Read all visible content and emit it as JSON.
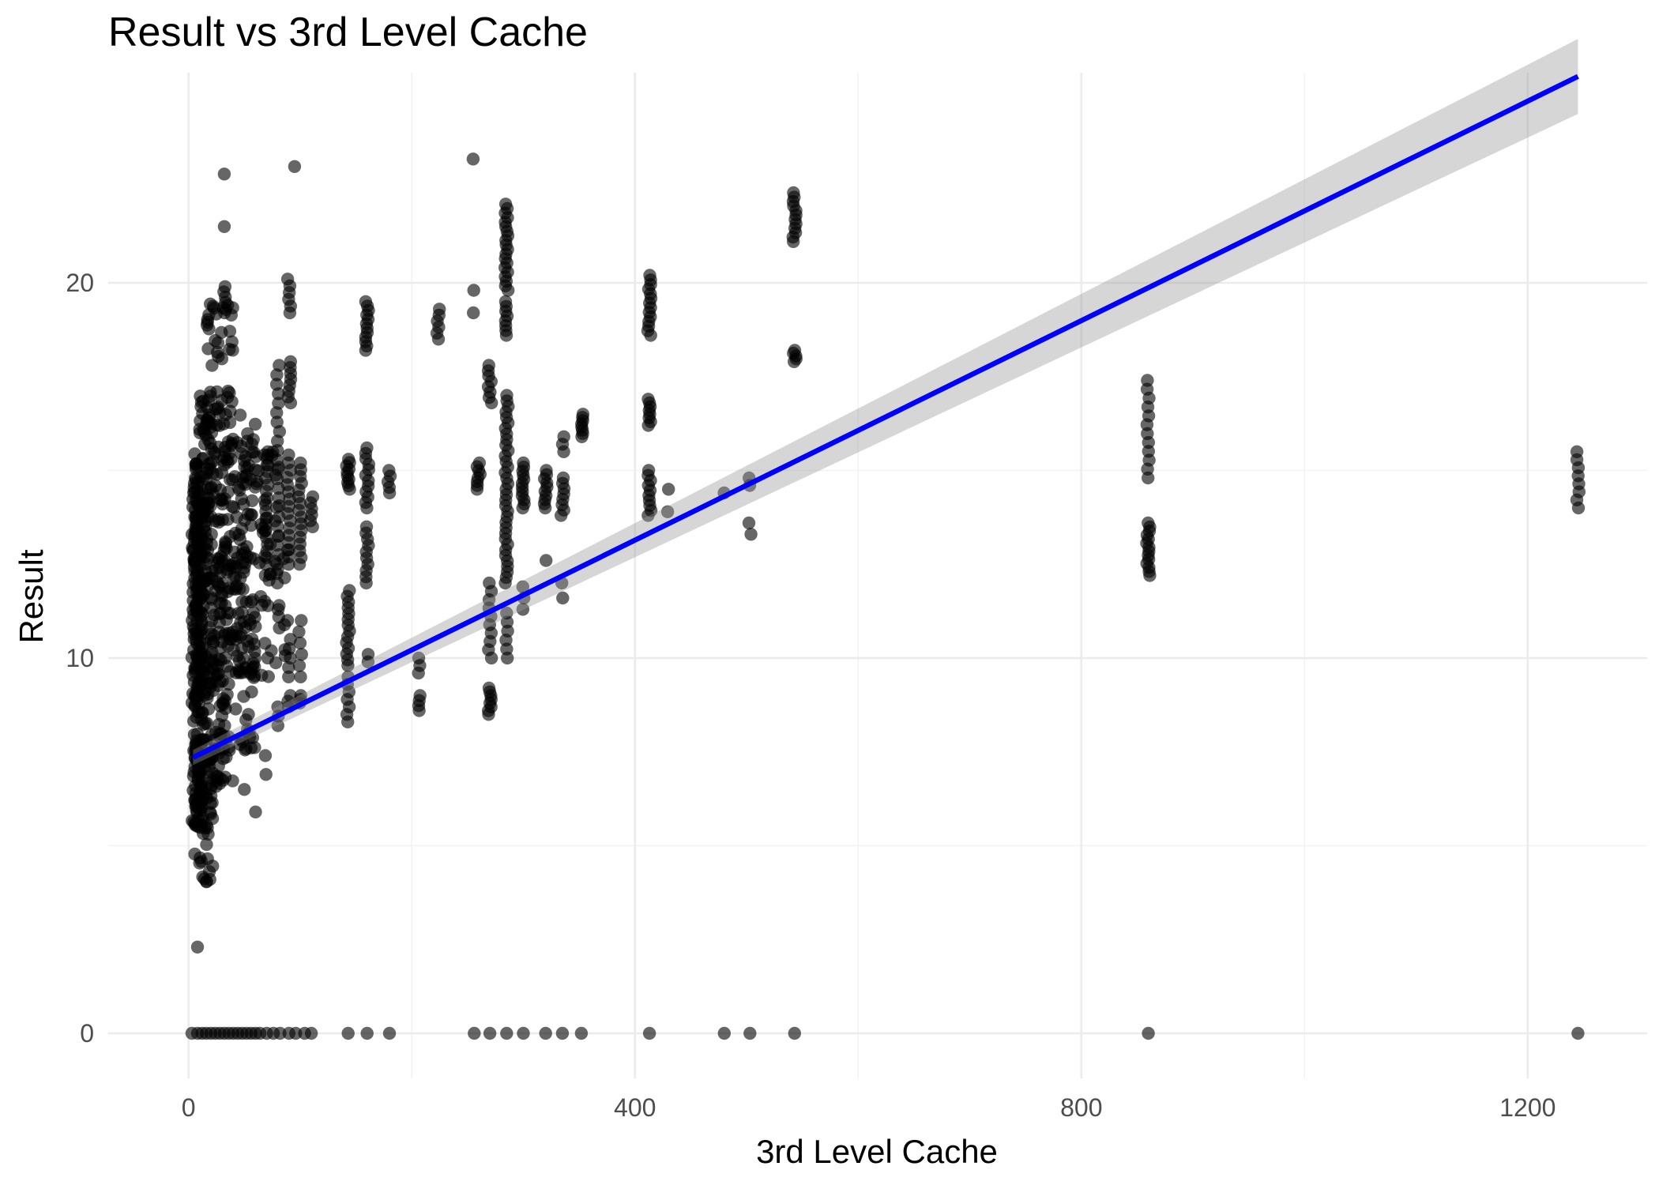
{
  "chart_data": {
    "type": "scatter",
    "title": "Result vs 3rd Level Cache",
    "xlabel": "3rd Level Cache",
    "ylabel": "Result",
    "xlim": [
      -72,
      1307
    ],
    "ylim": [
      -1.2,
      25.6
    ],
    "x_ticks": [
      0,
      400,
      800,
      1200
    ],
    "x_minor_ticks": [
      200,
      600,
      1000
    ],
    "y_ticks": [
      0,
      10,
      20
    ],
    "y_minor_ticks": [
      5,
      15
    ],
    "grid": true,
    "point_color": "#000000",
    "point_opacity": 0.6,
    "fit": {
      "method": "linear",
      "color": "#0000ff",
      "band_color": "#999999",
      "x": [
        4,
        1245
      ],
      "y": [
        7.35,
        25.5
      ],
      "ci_lower": [
        7.15,
        24.5
      ],
      "ci_upper": [
        7.55,
        26.5
      ]
    },
    "clusters": [
      {
        "x": [
          3,
          12
        ],
        "y": [
          5.5,
          15.5
        ],
        "n": 200
      },
      {
        "x": [
          5,
          22
        ],
        "y": [
          3.8,
          17
        ],
        "n": 170
      },
      {
        "x": [
          12,
          40
        ],
        "y": [
          6.5,
          19.5
        ],
        "n": 170
      },
      {
        "x": [
          25,
          60
        ],
        "y": [
          7.5,
          16.5
        ],
        "n": 150
      },
      {
        "x": [
          40,
          90
        ],
        "y": [
          9.5,
          15.5
        ],
        "n": 80
      }
    ],
    "columns": [
      {
        "x": 32,
        "y": [
          [
            19.2,
            19.9,
            6
          ]
        ]
      },
      {
        "x": 55,
        "y": [
          [
            8.5,
            11.5,
            6
          ]
        ]
      },
      {
        "x": 70,
        "y": [
          [
            12.5,
            15.5,
            18
          ],
          [
            6.9,
            7.4,
            2
          ]
        ]
      },
      {
        "x": 80,
        "y": [
          [
            12,
            17.8,
            24
          ],
          [
            8.2,
            8.7,
            3
          ],
          [
            10.8,
            11.4,
            3
          ]
        ]
      },
      {
        "x": 90,
        "y": [
          [
            19.2,
            20.1,
            6
          ],
          [
            16.8,
            17.9,
            8
          ],
          [
            12.5,
            15.2,
            15
          ],
          [
            9.5,
            10.5,
            5
          ],
          [
            8.7,
            9,
            3
          ]
        ]
      },
      {
        "x": 100,
        "y": [
          [
            12.5,
            15.2,
            16
          ],
          [
            9.5,
            11,
            6
          ],
          [
            8.8,
            9,
            3
          ]
        ]
      },
      {
        "x": 110,
        "y": [
          [
            13.5,
            14.3,
            6
          ]
        ]
      },
      {
        "x": 143,
        "y": [
          [
            14.5,
            15.3,
            10
          ],
          [
            9.8,
            11.8,
            14
          ],
          [
            8.3,
            9.5,
            7
          ]
        ]
      },
      {
        "x": 160,
        "y": [
          [
            18.2,
            19.5,
            12
          ],
          [
            14,
            15.6,
            12
          ],
          [
            12,
            13.5,
            10
          ],
          [
            9.9,
            10.1,
            2
          ]
        ]
      },
      {
        "x": 180,
        "y": [
          [
            14.4,
            15,
            5
          ]
        ]
      },
      {
        "x": 207,
        "y": [
          [
            9.6,
            10,
            3
          ],
          [
            8.6,
            9,
            4
          ]
        ]
      },
      {
        "x": 224,
        "y": [
          [
            18.5,
            19.3,
            6
          ]
        ]
      },
      {
        "x": 256,
        "y": [
          [
            19.2,
            19.8,
            2
          ]
        ]
      },
      {
        "x": 260,
        "y": [
          [
            14.5,
            15.2,
            8
          ]
        ]
      },
      {
        "x": 270,
        "y": [
          [
            16.8,
            17.8,
            8
          ],
          [
            10,
            12,
            10
          ],
          [
            8.5,
            9.2,
            8
          ]
        ]
      },
      {
        "x": 285,
        "y": [
          [
            19.8,
            22.1,
            20
          ],
          [
            18.6,
            19.5,
            8
          ],
          [
            12,
            17,
            35
          ],
          [
            10,
            11.2,
            6
          ]
        ]
      },
      {
        "x": 300,
        "y": [
          [
            14,
            15.2,
            12
          ],
          [
            11.3,
            11.9,
            3
          ]
        ]
      },
      {
        "x": 320,
        "y": [
          [
            14,
            15,
            10
          ],
          [
            12.6,
            12.8,
            1
          ]
        ]
      },
      {
        "x": 335,
        "y": [
          [
            13.8,
            14.8,
            8
          ],
          [
            11.6,
            12,
            2
          ],
          [
            15.5,
            15.9,
            3
          ]
        ]
      },
      {
        "x": 352,
        "y": [
          [
            15.9,
            16.5,
            8
          ]
        ]
      },
      {
        "x": 413,
        "y": [
          [
            18.6,
            20.2,
            14
          ],
          [
            16.2,
            16.9,
            8
          ],
          [
            13.8,
            15,
            10
          ]
        ]
      },
      {
        "x": 430,
        "y": [
          [
            13.9,
            14.5,
            2
          ]
        ]
      },
      {
        "x": 480,
        "y": [
          [
            14.4,
            14.4,
            1
          ]
        ]
      },
      {
        "x": 503,
        "y": [
          [
            13.3,
            13.6,
            2
          ],
          [
            14.6,
            14.8,
            2
          ]
        ]
      },
      {
        "x": 543,
        "y": [
          [
            21.1,
            22.4,
            12
          ],
          [
            17.9,
            18.2,
            5
          ]
        ]
      },
      {
        "x": 860,
        "y": [
          [
            12.2,
            13.6,
            14
          ],
          [
            14.8,
            17.4,
            12
          ]
        ]
      },
      {
        "x": 1245,
        "y": [
          [
            14,
            15.5,
            8
          ]
        ]
      }
    ],
    "zero_row_x": [
      3,
      8,
      12,
      16,
      20,
      24,
      28,
      32,
      36,
      40,
      44,
      48,
      52,
      56,
      60,
      64,
      70,
      76,
      82,
      90,
      96,
      104,
      110,
      143,
      160,
      180,
      256,
      270,
      285,
      300,
      320,
      335,
      352,
      413,
      480,
      503,
      543,
      860,
      1245
    ],
    "extra_points": [
      {
        "x": 8,
        "y": 2.3
      },
      {
        "x": 32,
        "y": 22.9
      },
      {
        "x": 32,
        "y": 21.5
      },
      {
        "x": 95,
        "y": 23.1
      },
      {
        "x": 255,
        "y": 23.3
      },
      {
        "x": 50,
        "y": 6.5
      },
      {
        "x": 60,
        "y": 5.9
      }
    ]
  }
}
